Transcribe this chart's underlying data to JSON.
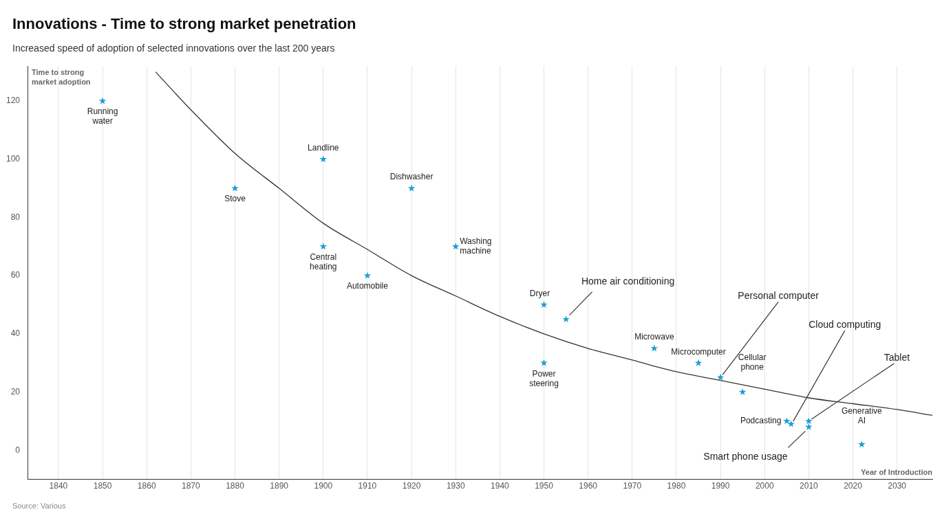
{
  "chart_data": {
    "type": "scatter",
    "title": "Innovations - Time to strong market penetration",
    "subtitle": "Increased speed of adoption of selected innovations over the last 200 years",
    "ylabel": "Time to strong market adoption",
    "xlabel": "Year of Introduction",
    "xlim": [
      1833,
      2038
    ],
    "xticks": [
      1840,
      1850,
      1860,
      1870,
      1880,
      1890,
      1900,
      1910,
      1920,
      1930,
      1940,
      1950,
      1960,
      1970,
      1980,
      1990,
      2000,
      2010,
      2020,
      2030
    ],
    "ylim": [
      -10,
      132
    ],
    "yticks": [
      0,
      20,
      40,
      60,
      80,
      100,
      120
    ],
    "grid": "x",
    "legend": false,
    "series": [
      {
        "marker": "star",
        "color": "#1a9fd4",
        "x": [
          1850,
          1880,
          1900,
          1900,
          1910,
          1920,
          1930,
          1950,
          1950,
          1955,
          1975,
          1985,
          1990,
          1995,
          2005,
          2006,
          2010,
          2010,
          2022
        ],
        "values": [
          120,
          90,
          100,
          70,
          60,
          90,
          70,
          50,
          30,
          45,
          35,
          30,
          25,
          20,
          10,
          9,
          10,
          8,
          2
        ]
      },
      {
        "type": "line",
        "color": "#333333",
        "x": [
          1862,
          1870,
          1880,
          1890,
          1900,
          1910,
          1920,
          1930,
          1940,
          1950,
          1960,
          1970,
          1980,
          1990,
          2000,
          2010,
          2020,
          2030,
          2038
        ],
        "values": [
          130,
          117,
          102,
          90,
          78,
          69,
          60,
          53,
          46,
          40,
          35,
          31,
          27,
          24,
          21,
          18,
          16,
          14,
          12
        ]
      }
    ],
    "annotations": [
      {
        "text": "Running water",
        "x": 1850,
        "y": 120
      },
      {
        "text": "Stove",
        "x": 1880,
        "y": 90
      },
      {
        "text": "Landline",
        "x": 1900,
        "y": 100
      },
      {
        "text": "Central heating",
        "x": 1900,
        "y": 70
      },
      {
        "text": "Automobile",
        "x": 1910,
        "y": 60
      },
      {
        "text": "Dishwasher",
        "x": 1920,
        "y": 90
      },
      {
        "text": "Washing machine",
        "x": 1930,
        "y": 70
      },
      {
        "text": "Dryer",
        "x": 1950,
        "y": 50
      },
      {
        "text": "Power steering",
        "x": 1950,
        "y": 30
      },
      {
        "text": "Home air conditioning",
        "x": 1955,
        "y": 45
      },
      {
        "text": "Microwave",
        "x": 1975,
        "y": 35
      },
      {
        "text": "Microcomputer",
        "x": 1985,
        "y": 30
      },
      {
        "text": "Personal computer",
        "x": 1990,
        "y": 25
      },
      {
        "text": "Cellular phone",
        "x": 1995,
        "y": 20
      },
      {
        "text": "Podcasting",
        "x": 2005,
        "y": 10
      },
      {
        "text": "Cloud computing",
        "x": 2006,
        "y": 9
      },
      {
        "text": "Tablet",
        "x": 2010,
        "y": 10
      },
      {
        "text": "Smart phone usage",
        "x": 2010,
        "y": 8
      },
      {
        "text": "Generative AI",
        "x": 2022,
        "y": 2
      },
      "Source: Various"
    ]
  }
}
